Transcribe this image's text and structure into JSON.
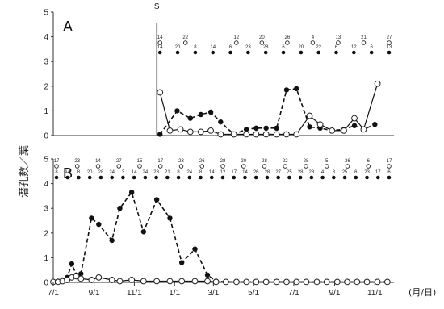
{
  "chart_data": [
    {
      "panel": "A",
      "type": "line",
      "ylabel": "潜孔数／葉",
      "ylim": [
        0,
        5
      ],
      "yticks": [
        0,
        1,
        2,
        3,
        4,
        5
      ],
      "marker_label": "S",
      "annotation_rows": [
        {
          "symbol": "open",
          "labels": [
            "14",
            "22",
            "",
            "12",
            "20",
            "26",
            "4",
            "13",
            "21",
            "27"
          ]
        },
        {
          "symbol": "filled",
          "labels": [
            "14",
            "20",
            "8",
            "14",
            "6",
            "23",
            "28",
            "6",
            "20",
            "22",
            "6",
            "12",
            "6",
            "13"
          ]
        }
      ],
      "series": [
        {
          "style": "filled-dashed",
          "points": [
            [
              "2018-12-10",
              0.05
            ],
            [
              "2019-01-05",
              1.0
            ],
            [
              "2019-01-25",
              0.7
            ],
            [
              "2019-02-10",
              0.85
            ],
            [
              "2019-02-25",
              0.95
            ],
            [
              "2019-03-12",
              0.55
            ],
            [
              "2019-04-01",
              0.05
            ],
            [
              "2019-04-20",
              0.25
            ],
            [
              "2019-05-05",
              0.3
            ],
            [
              "2019-05-20",
              0.3
            ],
            [
              "2019-06-05",
              0.3
            ],
            [
              "2019-06-20",
              1.85
            ],
            [
              "2019-07-05",
              1.9
            ],
            [
              "2019-07-25",
              0.35
            ],
            [
              "2019-08-10",
              0.3
            ],
            [
              "2019-08-28",
              0.2
            ],
            [
              "2019-09-15",
              0.25
            ],
            [
              "2019-10-01",
              0.4
            ],
            [
              "2019-10-15",
              0.25
            ],
            [
              "2019-11-01",
              0.45
            ]
          ]
        },
        {
          "style": "open-solid",
          "points": [
            [
              "2018-12-10",
              1.75
            ],
            [
              "2018-12-25",
              0.2
            ],
            [
              "2019-01-10",
              0.25
            ],
            [
              "2019-01-25",
              0.15
            ],
            [
              "2019-02-10",
              0.15
            ],
            [
              "2019-02-25",
              0.2
            ],
            [
              "2019-03-12",
              0.05
            ],
            [
              "2019-04-01",
              0.05
            ],
            [
              "2019-04-20",
              0.05
            ],
            [
              "2019-05-05",
              0.05
            ],
            [
              "2019-05-20",
              0.05
            ],
            [
              "2019-06-05",
              0.05
            ],
            [
              "2019-06-20",
              0.05
            ],
            [
              "2019-07-05",
              0.05
            ],
            [
              "2019-07-25",
              0.8
            ],
            [
              "2019-08-10",
              0.45
            ],
            [
              "2019-08-28",
              0.2
            ],
            [
              "2019-09-15",
              0.2
            ],
            [
              "2019-10-01",
              0.7
            ],
            [
              "2019-10-15",
              0.25
            ],
            [
              "2019-11-05",
              2.1
            ]
          ]
        }
      ]
    },
    {
      "panel": "B",
      "type": "line",
      "ylabel": "",
      "ylim": [
        0,
        5
      ],
      "yticks": [
        0,
        1,
        2,
        3,
        4,
        5
      ],
      "xlabel": "(月/日)",
      "xticks": [
        "7/1",
        "9/1",
        "11/1",
        "1/1",
        "3/1",
        "5/1",
        "7/1",
        "9/1",
        "11/1"
      ],
      "annotation_rows": [
        {
          "symbol": "open",
          "labels": [
            "17",
            "23",
            "14",
            "27",
            "15",
            "17",
            "23",
            "26",
            "28",
            "20",
            "28",
            "22",
            "28",
            "5",
            "26",
            "6",
            "17"
          ]
        },
        {
          "symbol": "filled",
          "labels": [
            "8",
            "14",
            "8",
            "20",
            "28",
            "24",
            "3",
            "14",
            "24",
            "28",
            "21",
            "8",
            "24",
            "8",
            "14",
            "12",
            "17",
            "14",
            "26",
            "28",
            "27",
            "25",
            "28",
            "28",
            "4",
            "8",
            "25",
            "6",
            "23",
            "17",
            "6"
          ]
        }
      ],
      "series": [
        {
          "style": "filled-dashed",
          "points": [
            [
              "2018-07-01",
              0.02
            ],
            [
              "2018-07-08",
              0.05
            ],
            [
              "2018-07-15",
              0.1
            ],
            [
              "2018-07-22",
              0.2
            ],
            [
              "2018-07-29",
              0.75
            ],
            [
              "2018-08-05",
              0.3
            ],
            [
              "2018-08-12",
              0.35
            ],
            [
              "2018-08-28",
              2.6
            ],
            [
              "2018-09-08",
              2.35
            ],
            [
              "2018-09-28",
              1.7
            ],
            [
              "2018-10-10",
              3.0
            ],
            [
              "2018-10-28",
              3.65
            ],
            [
              "2018-11-15",
              2.05
            ],
            [
              "2018-12-05",
              3.35
            ],
            [
              "2018-12-25",
              2.6
            ],
            [
              "2019-01-12",
              0.8
            ],
            [
              "2019-02-01",
              1.35
            ],
            [
              "2019-02-20",
              0.3
            ],
            [
              "2019-03-05",
              0.05
            ],
            [
              "2019-03-20",
              0.02
            ],
            [
              "2019-04-05",
              0.02
            ],
            [
              "2019-04-20",
              0.02
            ],
            [
              "2019-05-05",
              0.02
            ],
            [
              "2019-05-20",
              0.02
            ],
            [
              "2019-06-05",
              0.02
            ],
            [
              "2019-06-20",
              0.02
            ],
            [
              "2019-07-05",
              0.02
            ],
            [
              "2019-07-20",
              0.02
            ],
            [
              "2019-08-05",
              0.02
            ],
            [
              "2019-08-20",
              0.02
            ],
            [
              "2019-09-05",
              0.02
            ],
            [
              "2019-09-20",
              0.02
            ],
            [
              "2019-10-05",
              0.02
            ],
            [
              "2019-10-20",
              0.02
            ],
            [
              "2019-11-05",
              0.02
            ],
            [
              "2019-11-20",
              0.02
            ]
          ]
        },
        {
          "style": "open-solid",
          "points": [
            [
              "2018-07-01",
              0.02
            ],
            [
              "2018-07-08",
              0.02
            ],
            [
              "2018-07-15",
              0.05
            ],
            [
              "2018-07-22",
              0.1
            ],
            [
              "2018-07-29",
              0.2
            ],
            [
              "2018-08-05",
              0.25
            ],
            [
              "2018-08-12",
              0.15
            ],
            [
              "2018-08-28",
              0.1
            ],
            [
              "2018-09-08",
              0.2
            ],
            [
              "2018-09-28",
              0.1
            ],
            [
              "2018-10-10",
              0.05
            ],
            [
              "2018-10-28",
              0.1
            ],
            [
              "2018-11-15",
              0.05
            ],
            [
              "2018-12-05",
              0.05
            ],
            [
              "2018-12-25",
              0.05
            ],
            [
              "2019-01-12",
              0.05
            ],
            [
              "2019-02-01",
              0.05
            ],
            [
              "2019-02-20",
              0.05
            ],
            [
              "2019-03-05",
              0.02
            ],
            [
              "2019-03-20",
              0.02
            ],
            [
              "2019-04-05",
              0.02
            ],
            [
              "2019-04-20",
              0.02
            ],
            [
              "2019-05-05",
              0.02
            ],
            [
              "2019-05-20",
              0.02
            ],
            [
              "2019-06-05",
              0.02
            ],
            [
              "2019-06-20",
              0.02
            ],
            [
              "2019-07-05",
              0.02
            ],
            [
              "2019-07-20",
              0.02
            ],
            [
              "2019-08-05",
              0.02
            ],
            [
              "2019-08-20",
              0.02
            ],
            [
              "2019-09-05",
              0.02
            ],
            [
              "2019-09-20",
              0.02
            ],
            [
              "2019-10-05",
              0.02
            ],
            [
              "2019-10-20",
              0.02
            ],
            [
              "2019-11-05",
              0.02
            ],
            [
              "2019-11-20",
              0.02
            ]
          ]
        }
      ]
    }
  ]
}
